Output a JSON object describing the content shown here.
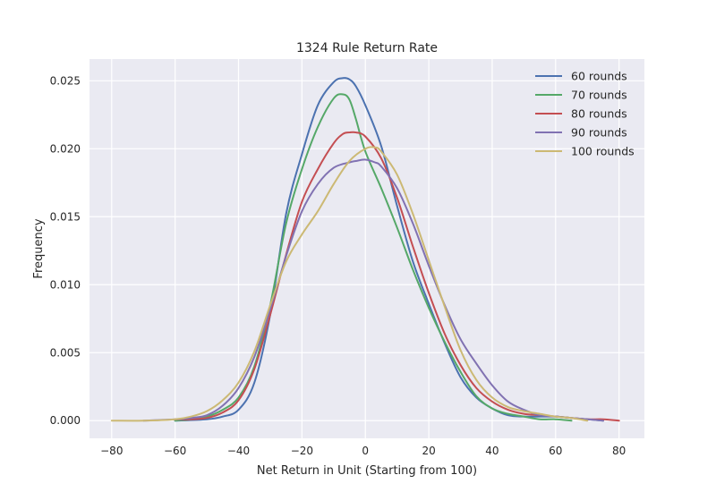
{
  "chart_data": {
    "type": "line",
    "title": "1324 Rule Return Rate",
    "xlabel": "Net Return in Unit (Starting from 100)",
    "ylabel": "Frequency",
    "xlim": [
      -87,
      88
    ],
    "ylim": [
      -0.0013,
      0.0266
    ],
    "xticks": [
      -80,
      -60,
      -40,
      -20,
      0,
      20,
      40,
      60,
      80
    ],
    "xtick_labels": [
      "−80",
      "−60",
      "−40",
      "−20",
      "0",
      "20",
      "40",
      "60",
      "80"
    ],
    "yticks": [
      0.0,
      0.005,
      0.01,
      0.015,
      0.02,
      0.025
    ],
    "ytick_labels": [
      "0.000",
      "0.005",
      "0.010",
      "0.015",
      "0.020",
      "0.025"
    ],
    "grid": true,
    "legend_position": "top-right",
    "series": [
      {
        "name": "60 rounds",
        "color": "#4c72b0",
        "x": [
          -60,
          -50,
          -45,
          -40,
          -35,
          -30,
          -25,
          -20,
          -15,
          -10,
          -7,
          -5,
          -3,
          0,
          5,
          10,
          15,
          20,
          25,
          30,
          35,
          40,
          45,
          50,
          55,
          60,
          65,
          70,
          75
        ],
        "y": [
          0.0,
          0.0001,
          0.0003,
          0.0008,
          0.0028,
          0.0078,
          0.0152,
          0.0196,
          0.0232,
          0.0249,
          0.0252,
          0.0251,
          0.0246,
          0.0232,
          0.0202,
          0.0158,
          0.0117,
          0.0086,
          0.0057,
          0.0032,
          0.0017,
          0.0009,
          0.0004,
          0.0003,
          0.0003,
          0.0003,
          0.0002,
          0.0001,
          0.0
        ]
      },
      {
        "name": "70 rounds",
        "color": "#55a868",
        "x": [
          -60,
          -55,
          -50,
          -45,
          -40,
          -35,
          -30,
          -25,
          -20,
          -15,
          -10,
          -7,
          -5,
          -3,
          0,
          5,
          10,
          15,
          20,
          25,
          30,
          35,
          40,
          45,
          50,
          55,
          60,
          65
        ],
        "y": [
          0.0,
          0.0001,
          0.0003,
          0.0008,
          0.0017,
          0.004,
          0.0085,
          0.0145,
          0.0185,
          0.0216,
          0.0237,
          0.024,
          0.0236,
          0.0222,
          0.0198,
          0.0171,
          0.0142,
          0.0111,
          0.0083,
          0.0058,
          0.0036,
          0.0018,
          0.0009,
          0.0005,
          0.0003,
          0.0001,
          0.0001,
          0.0
        ]
      },
      {
        "name": "80 rounds",
        "color": "#c44e52",
        "x": [
          -60,
          -55,
          -50,
          -45,
          -40,
          -35,
          -30,
          -25,
          -20,
          -15,
          -10,
          -7,
          -5,
          -3,
          0,
          5,
          10,
          15,
          20,
          25,
          30,
          35,
          40,
          45,
          50,
          55,
          60,
          65,
          70,
          75,
          80
        ],
        "y": [
          0.0001,
          0.0001,
          0.0002,
          0.0006,
          0.0015,
          0.0038,
          0.0078,
          0.0122,
          0.0161,
          0.0185,
          0.0204,
          0.0211,
          0.0212,
          0.0212,
          0.0209,
          0.0193,
          0.0164,
          0.0128,
          0.0094,
          0.0064,
          0.0041,
          0.0024,
          0.0014,
          0.0008,
          0.0005,
          0.0004,
          0.0003,
          0.0002,
          0.0001,
          0.0001,
          0.0
        ]
      },
      {
        "name": "90 rounds",
        "color": "#8172b2",
        "x": [
          -70,
          -60,
          -55,
          -50,
          -45,
          -40,
          -35,
          -30,
          -25,
          -20,
          -15,
          -10,
          -5,
          -3,
          0,
          3,
          5,
          10,
          15,
          20,
          25,
          30,
          35,
          40,
          45,
          50,
          55,
          60,
          65,
          70,
          75
        ],
        "y": [
          0.0,
          0.0001,
          0.0002,
          0.0004,
          0.0011,
          0.0024,
          0.0047,
          0.0082,
          0.0121,
          0.0154,
          0.0174,
          0.0186,
          0.019,
          0.0191,
          0.0192,
          0.019,
          0.0187,
          0.0171,
          0.0145,
          0.0114,
          0.0085,
          0.006,
          0.0042,
          0.0026,
          0.0014,
          0.0008,
          0.0004,
          0.0003,
          0.0002,
          0.0001,
          0.0
        ]
      },
      {
        "name": "100 rounds",
        "color": "#ccb974",
        "x": [
          -80,
          -70,
          -60,
          -55,
          -50,
          -45,
          -40,
          -35,
          -30,
          -25,
          -20,
          -15,
          -10,
          -5,
          0,
          3,
          5,
          10,
          15,
          20,
          25,
          30,
          35,
          40,
          45,
          50,
          55,
          60,
          65,
          70
        ],
        "y": [
          0.0,
          0.0,
          0.0001,
          0.0003,
          0.0007,
          0.0015,
          0.0028,
          0.0051,
          0.0085,
          0.0117,
          0.0137,
          0.0154,
          0.0174,
          0.0191,
          0.02,
          0.0201,
          0.0198,
          0.0181,
          0.0152,
          0.0118,
          0.0084,
          0.0052,
          0.003,
          0.0017,
          0.001,
          0.0007,
          0.0005,
          0.0003,
          0.0002,
          0.0
        ]
      }
    ]
  }
}
